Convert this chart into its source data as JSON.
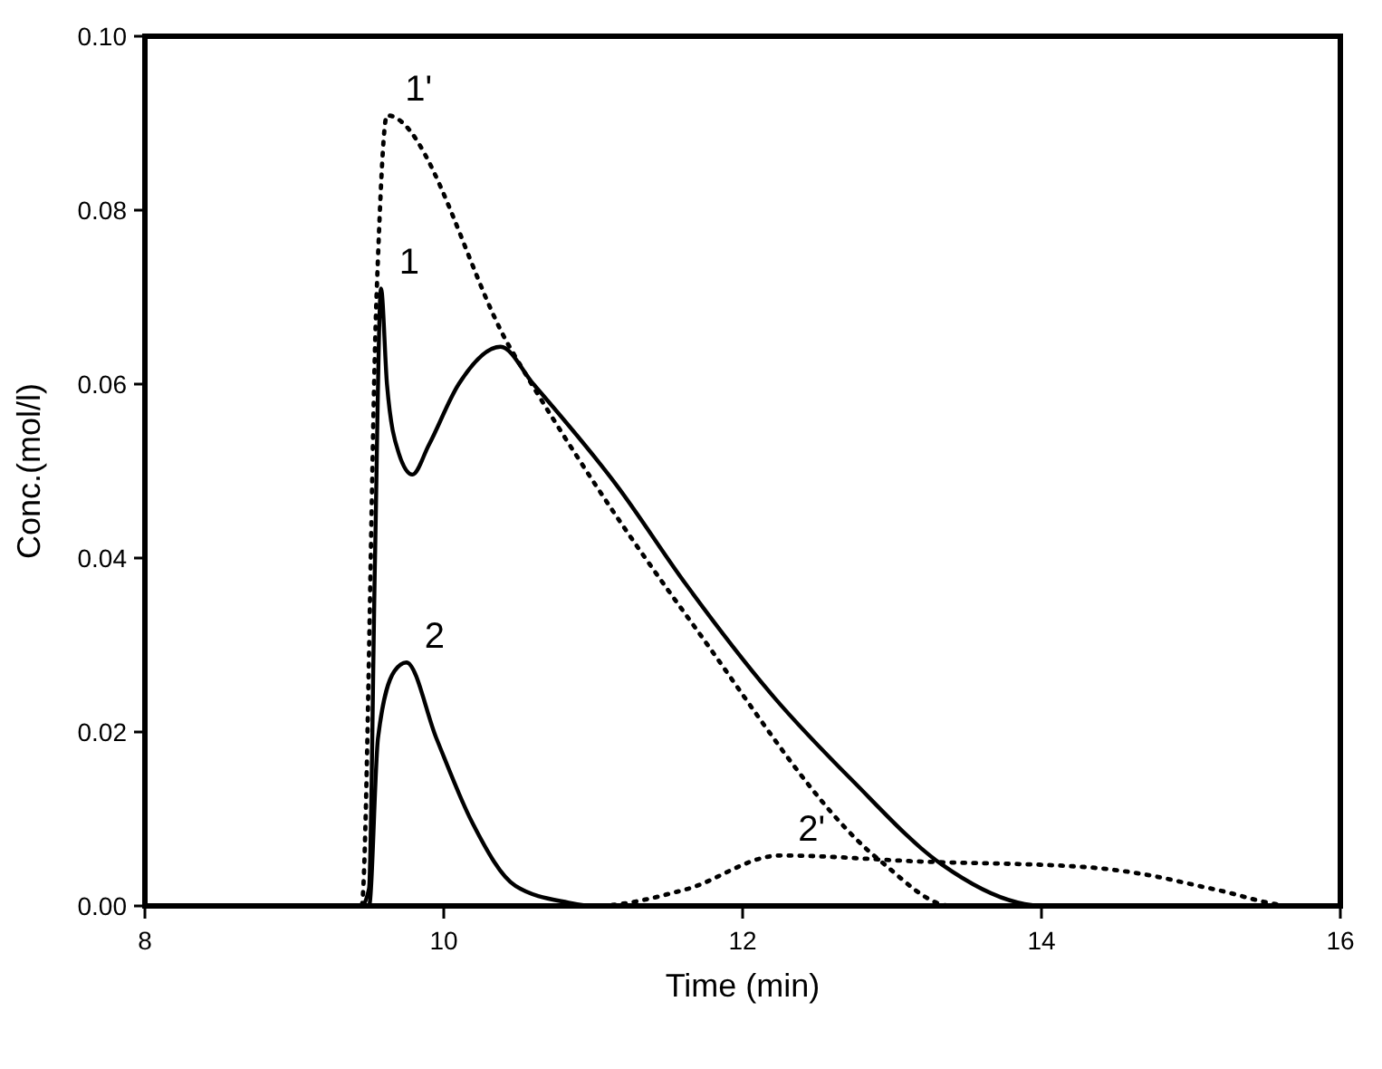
{
  "chart_data": {
    "type": "line",
    "xlabel": "Time (min)",
    "ylabel": "Conc.(mol/l)",
    "xlim": [
      8,
      16
    ],
    "ylim": [
      0,
      0.1
    ],
    "xticks": [
      8,
      10,
      12,
      14,
      16
    ],
    "yticks": [
      {
        "value": 0,
        "label": "0.00"
      },
      0.02,
      0.04,
      0.06,
      0.08,
      {
        "value": 0.1,
        "label": "0.10"
      }
    ],
    "grid": false,
    "series": [
      {
        "name": "1",
        "color": "#000000",
        "line_style": "solid",
        "x": [
          8,
          9.45,
          9.5,
          9.54,
          9.58,
          9.62,
          9.7,
          9.79,
          9.9,
          10.1,
          10.38,
          10.6,
          11.16,
          11.62,
          12.21,
          12.73,
          13.33,
          13.84,
          14.0,
          16
        ],
        "values": [
          0,
          0,
          0.002,
          0.04,
          0.071,
          0.06,
          0.052,
          0.0496,
          0.053,
          0.06,
          0.0643,
          0.06,
          0.0483,
          0.037,
          0.024,
          0.0145,
          0.0048,
          0.0004,
          0,
          0
        ]
      },
      {
        "name": "1'",
        "color": "#000000",
        "line_style": "dotted",
        "x": [
          8,
          9.45,
          9.55,
          9.62,
          10.44,
          11.02,
          11.67,
          12.92,
          13.4,
          16
        ],
        "values": [
          0,
          0,
          0.07,
          0.0909,
          0.0643,
          0.0483,
          0.0323,
          0.0052,
          0,
          0
        ]
      },
      {
        "name": "2",
        "color": "#000000",
        "line_style": "solid",
        "x": [
          8,
          9.5,
          9.56,
          9.67,
          9.75,
          9.95,
          10.19,
          10.48,
          10.83,
          11.0,
          16
        ],
        "values": [
          0,
          0,
          0.0193,
          0.027,
          0.028,
          0.0193,
          0.0096,
          0.0023,
          0.0004,
          0,
          0
        ]
      },
      {
        "name": "2'",
        "color": "#000000",
        "line_style": "dotted",
        "x": [
          8,
          11.0,
          11.62,
          12.25,
          13.2,
          14.27,
          14.63,
          15.16,
          15.7,
          16
        ],
        "values": [
          0,
          0,
          0.0019,
          0.0058,
          0.0051,
          0.0045,
          0.0038,
          0.0019,
          0,
          0
        ]
      }
    ]
  }
}
